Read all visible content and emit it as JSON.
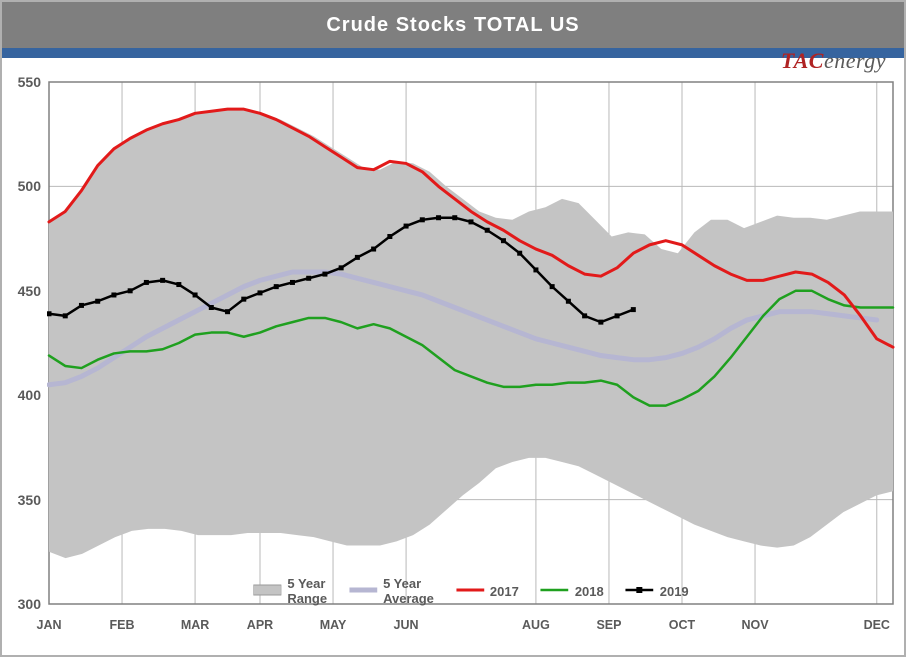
{
  "title": "Crude Stocks TOTAL US",
  "logo": {
    "tac": "TAC",
    "energy": "energy"
  },
  "chart": {
    "type": "line-area",
    "background_color": "#ffffff",
    "grid_color": "#b9b9b9",
    "axis_color": "#808080",
    "title_bar_color": "#7f7f7f",
    "blue_strip_color": "#36649f",
    "x_labels": [
      "JAN",
      "FEB",
      "MAR",
      "APR",
      "MAY",
      "JUN",
      "AUG",
      "SEP",
      "OCT",
      "NOV",
      "DEC"
    ],
    "x_positions_weeks": [
      0,
      4.5,
      9,
      13,
      17.5,
      22,
      30,
      34.5,
      39,
      43.5,
      51
    ],
    "weeks_total": 52,
    "ylim": [
      300,
      550
    ],
    "ytick_step": 50,
    "yticks": [
      300,
      350,
      400,
      450,
      500,
      550
    ],
    "tick_fontsize": 14,
    "xlabel_fontsize": 12.5,
    "series": {
      "range_upper": {
        "label": "5 Year Range",
        "fill": "#c4c4c4",
        "stroke": "#c4c4c4",
        "stroke_width": 1.5,
        "values": [
          483,
          488,
          498,
          510,
          518,
          523,
          527,
          530,
          532,
          535,
          536,
          537,
          537,
          535,
          532,
          528,
          524,
          519,
          514,
          509,
          508,
          512,
          511,
          507,
          500,
          494,
          488,
          485,
          484,
          488,
          490,
          494,
          492,
          484,
          476,
          478,
          477,
          470,
          468,
          478,
          484,
          484,
          480,
          483,
          486,
          485,
          485,
          484,
          486,
          488,
          488,
          488
        ]
      },
      "range_lower": {
        "label": "5 Year Range",
        "fill": "#c4c4c4",
        "stroke": "#c4c4c4",
        "stroke_width": 1.5,
        "values": [
          325,
          322,
          324,
          328,
          332,
          335,
          336,
          336,
          335,
          333,
          333,
          333,
          334,
          334,
          334,
          333,
          332,
          330,
          328,
          328,
          328,
          330,
          333,
          338,
          345,
          352,
          358,
          365,
          368,
          370,
          370,
          368,
          366,
          362,
          358,
          354,
          350,
          346,
          342,
          338,
          335,
          332,
          330,
          328,
          327,
          328,
          332,
          338,
          344,
          348,
          352,
          354
        ]
      },
      "avg": {
        "label": "5 Year Average",
        "color": "#b6b6d2",
        "stroke_width": 5,
        "values": [
          405,
          406,
          409,
          413,
          418,
          423,
          428,
          432,
          436,
          440,
          444,
          448,
          452,
          455,
          457,
          459,
          459,
          459,
          458,
          456,
          454,
          452,
          450,
          448,
          445,
          442,
          439,
          436,
          433,
          430,
          427,
          425,
          423,
          421,
          419,
          418,
          417,
          417,
          418,
          420,
          423,
          427,
          432,
          436,
          438,
          440,
          440,
          440,
          439,
          438,
          437,
          436
        ]
      },
      "s2017": {
        "label": "2017",
        "color": "#e21a1a",
        "stroke_width": 3,
        "values": [
          483,
          488,
          498,
          510,
          518,
          523,
          527,
          530,
          532,
          535,
          536,
          537,
          537,
          535,
          532,
          528,
          524,
          519,
          514,
          509,
          508,
          512,
          511,
          507,
          500,
          494,
          488,
          483,
          479,
          474,
          470,
          467,
          462,
          458,
          457,
          461,
          468,
          472,
          474,
          472,
          467,
          462,
          458,
          455,
          455,
          457,
          459,
          458,
          454,
          448,
          438,
          427,
          423
        ]
      },
      "s2018": {
        "label": "2018",
        "color": "#1fa01f",
        "stroke_width": 2.5,
        "values": [
          419,
          414,
          413,
          417,
          420,
          421,
          421,
          422,
          425,
          429,
          430,
          430,
          428,
          430,
          433,
          435,
          437,
          437,
          435,
          432,
          434,
          432,
          428,
          424,
          418,
          412,
          409,
          406,
          404,
          404,
          405,
          405,
          406,
          406,
          407,
          405,
          399,
          395,
          395,
          398,
          402,
          409,
          418,
          428,
          438,
          446,
          450,
          450,
          446,
          443,
          442,
          442,
          442
        ]
      },
      "s2019": {
        "label": "2019",
        "color": "#000000",
        "stroke_width": 2.5,
        "marker": "square",
        "marker_size": 5,
        "values": [
          439,
          438,
          443,
          445,
          448,
          450,
          454,
          455,
          453,
          448,
          442,
          440,
          446,
          449,
          452,
          454,
          456,
          458,
          461,
          466,
          470,
          476,
          481,
          484,
          485,
          485,
          483,
          479,
          474,
          468,
          460,
          452,
          445,
          438,
          435,
          438,
          441
        ]
      }
    },
    "legend": {
      "items": [
        "5 Year Range",
        "5 Year Average",
        "2017",
        "2018",
        "2019"
      ],
      "fontsize": 13,
      "color": "#5a5a5a"
    }
  }
}
